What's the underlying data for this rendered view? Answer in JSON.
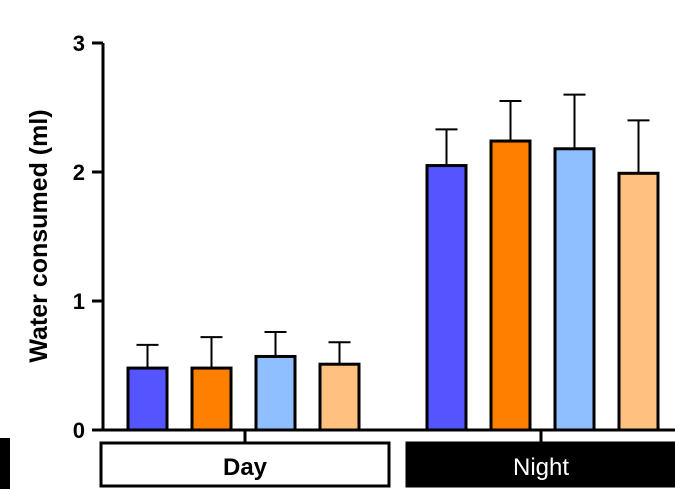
{
  "chart_data": {
    "type": "bar",
    "ylabel": "Water consumed (ml)",
    "ylim": [
      0,
      3
    ],
    "yticks": [
      "0",
      "1",
      "2",
      "3"
    ],
    "groups": [
      {
        "label": "Day",
        "label_style": "white box, bold black text",
        "bars": [
          {
            "value": 0.48,
            "error": 0.18,
            "color": "#5555ff"
          },
          {
            "value": 0.48,
            "error": 0.24,
            "color": "#ff7f00"
          },
          {
            "value": 0.57,
            "error": 0.19,
            "color": "#8fbfff"
          },
          {
            "value": 0.51,
            "error": 0.17,
            "color": "#ffc080"
          }
        ]
      },
      {
        "label": "Night",
        "label_style": "black box, white text",
        "bars": [
          {
            "value": 2.05,
            "error": 0.28,
            "color": "#5555ff"
          },
          {
            "value": 2.24,
            "error": 0.31,
            "color": "#ff7f00"
          },
          {
            "value": 2.18,
            "error": 0.42,
            "color": "#8fbfff"
          },
          {
            "value": 1.99,
            "error": 0.41,
            "color": "#ffc080"
          }
        ]
      }
    ],
    "grid": false,
    "legend": "none"
  }
}
